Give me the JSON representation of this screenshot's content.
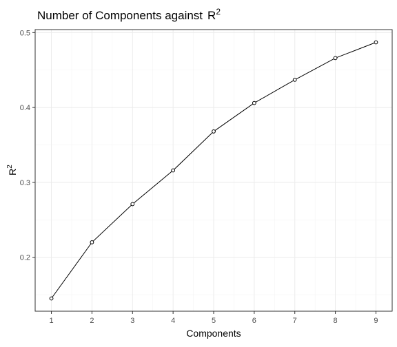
{
  "chart_data": {
    "type": "line",
    "title": "Number of Components against",
    "title_symbol": "R",
    "title_superscript": "2",
    "xlabel": "Components",
    "ylabel": "R",
    "ylabel_superscript": "2",
    "x": [
      1,
      2,
      3,
      4,
      5,
      6,
      7,
      8,
      9
    ],
    "series": [
      {
        "values": [
          0.145,
          0.22,
          0.271,
          0.316,
          0.368,
          0.406,
          0.437,
          0.466,
          0.487
        ]
      }
    ],
    "x_ticks": [
      "1",
      "2",
      "3",
      "4",
      "5",
      "6",
      "7",
      "8",
      "9"
    ],
    "y_ticks": [
      "0.2",
      "0.3",
      "0.4",
      "0.5"
    ],
    "xlim": [
      0.6,
      9.4
    ],
    "ylim": [
      0.128,
      0.504
    ],
    "grid": true,
    "point_marker": "hollow-circle",
    "line_color": "#000000"
  }
}
